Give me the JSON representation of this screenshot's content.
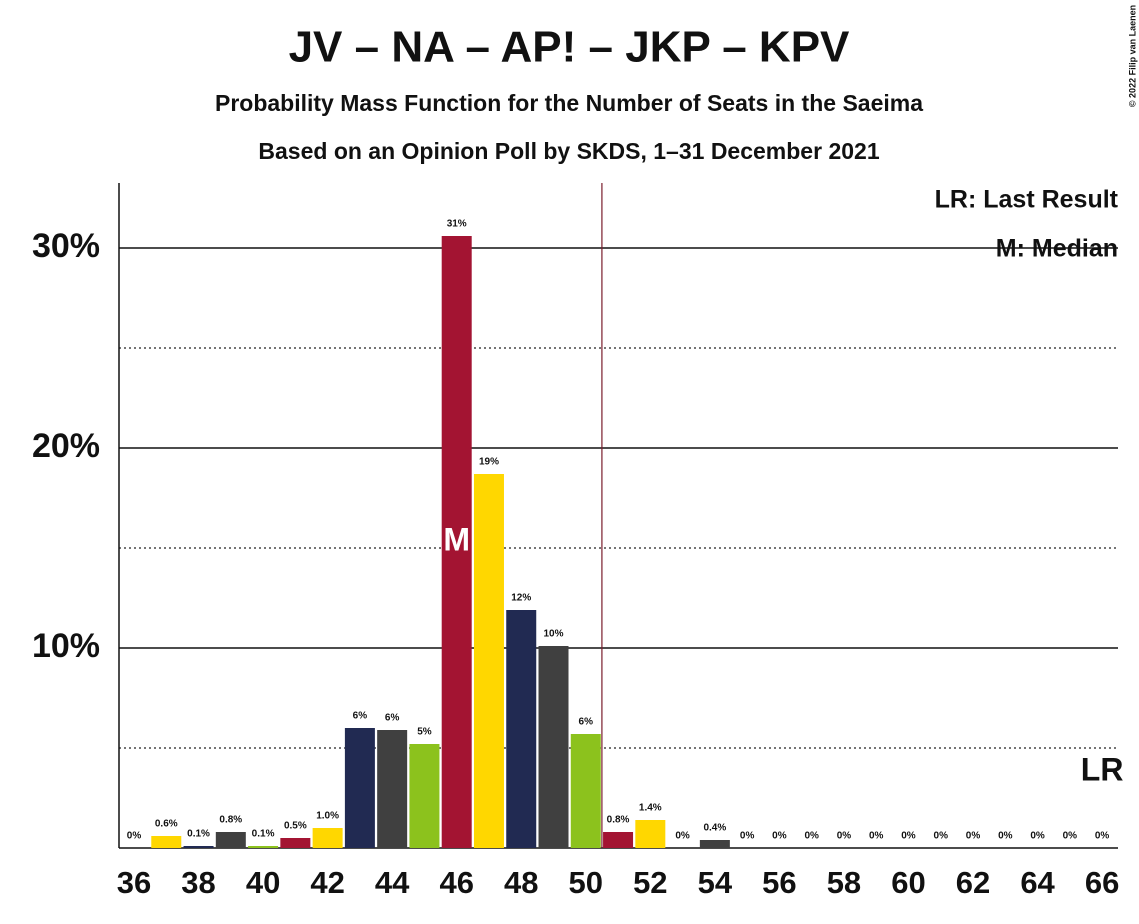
{
  "chart_data": {
    "type": "bar",
    "title": "JV – NA – AP! – JKP – KPV",
    "subtitle": "Probability Mass Function for the Number of Seats in the Saeima",
    "subtitle2": "Based on an Opinion Poll by SKDS, 1–31 December 2021",
    "copyright": "© 2022 Filip van Laenen",
    "categories": [
      36,
      null,
      38,
      null,
      40,
      null,
      42,
      null,
      44,
      null,
      46,
      null,
      48,
      null,
      50,
      null,
      52,
      null,
      54,
      null,
      56,
      null,
      58,
      null,
      60,
      null,
      62,
      null,
      64,
      null,
      66
    ],
    "values": [
      0,
      0.6,
      0.1,
      0.8,
      0.1,
      0.5,
      1.0,
      6.0,
      5.9,
      5.2,
      30.6,
      18.7,
      11.9,
      10.1,
      5.7,
      0.8,
      1.4,
      0,
      0.4,
      0,
      0,
      0,
      0,
      0,
      0,
      0,
      0,
      0,
      0,
      0,
      0
    ],
    "value_labels": [
      "0%",
      "0.6%",
      "0.1%",
      "0.8%",
      "0.1%",
      "0.5%",
      "1.0%",
      "6%",
      "6%",
      "5%",
      "31%",
      "19%",
      "12%",
      "10%",
      "6%",
      "0.8%",
      "1.4%",
      "0%",
      "0.4%",
      "0%",
      "0%",
      "0%",
      "0%",
      "0%",
      "0%",
      "0%",
      "0%",
      "0%",
      "0%",
      "0%",
      "0%"
    ],
    "colors": [
      "#a31432",
      "#ffd700",
      "#212a52",
      "#404040",
      "#8cc21d"
    ],
    "ylim": [
      0,
      33.25
    ],
    "yticks": [
      {
        "value": 10,
        "label": "10%"
      },
      {
        "value": 20,
        "label": "20%"
      },
      {
        "value": 30,
        "label": "30%"
      }
    ],
    "minor_gridlines": [
      5,
      15,
      25
    ],
    "grid": true,
    "majority_line": 50.5,
    "median": {
      "seats": 46,
      "label": "M"
    },
    "last_result": {
      "seats": 66,
      "label": "LR"
    },
    "legend": [
      "LR: Last Result",
      "M: Median"
    ]
  }
}
